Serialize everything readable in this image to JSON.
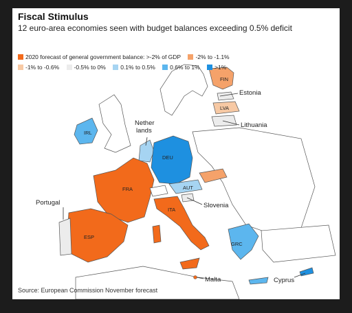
{
  "title": "Fiscal Stimulus",
  "subtitle": "12 euro-area economies seen with budget balances exceeding 0.5% deficit",
  "legend": {
    "items": [
      {
        "label": "2020 forecast of general government balance: >-2% of GDP",
        "color": "#f26a1b"
      },
      {
        "label": "-2% to -1.1%",
        "color": "#f5a26a"
      },
      {
        "label": "-1% to -0.6%",
        "color": "#f7c9a4"
      },
      {
        "label": "-0.5% to 0%",
        "color": "#ececec"
      },
      {
        "label": "0.1% to 0.5%",
        "color": "#a6d4f2"
      },
      {
        "label": "0.6% to 1%",
        "color": "#5cb6ee"
      },
      {
        "label": ">1%",
        "color": "#1e90e0"
      }
    ]
  },
  "map_labels": {
    "fin": "FIN",
    "estonia": "Estonia",
    "lva": "LVA",
    "lithuania": "Lithuania",
    "irl": "IRL",
    "netherlands_line1": "Nether",
    "netherlands_line2": "lands",
    "deu": "DEU",
    "fra": "FRA",
    "aut": "AUT",
    "slovenia": "Slovenia",
    "portugal": "Portugal",
    "esp": "ESP",
    "ita": "ITA",
    "grc": "GRC",
    "malta": "Malta",
    "cyprus": "Cyprus"
  },
  "source": "Source: European Commission November forecast",
  "colors": {
    "over_2": "#f26a1b",
    "range_2_to_1_1": "#f5a26a",
    "range_1_to_0_6": "#f7c9a4",
    "range_0_5_to_0": "#ececec",
    "range_0_1_to_0_5": "#a6d4f2",
    "range_0_6_to_1": "#5cb6ee",
    "over_1": "#1e90e0",
    "non_euro": "#ffffff"
  }
}
